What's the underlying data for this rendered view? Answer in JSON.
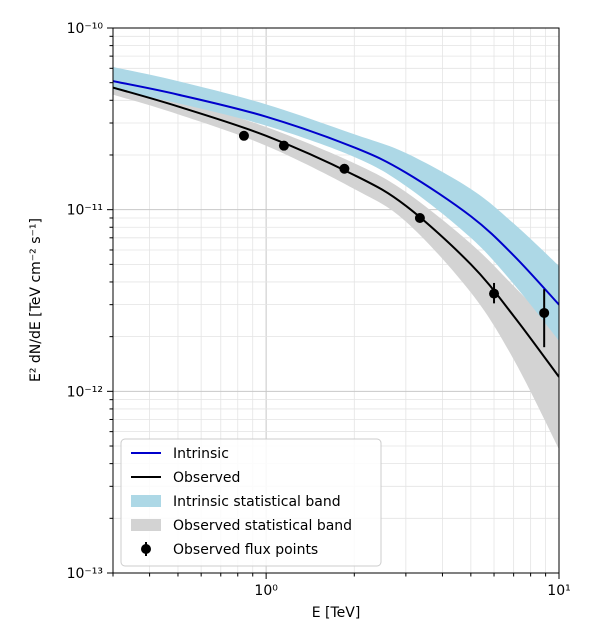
{
  "chart_data": {
    "type": "line",
    "xlabel": "E [TeV]",
    "ylabel": "E² dN/dE [TeV cm⁻² s⁻¹]",
    "xlim": [
      0.3,
      10
    ],
    "ylim": [
      1e-13,
      1e-10
    ],
    "xscale": "log",
    "yscale": "log",
    "grid": true,
    "legend_position": "lower-left",
    "x_tick_labels": [
      "10⁰",
      "10¹"
    ],
    "y_tick_labels": [
      "10⁻¹³",
      "10⁻¹²",
      "10⁻¹¹",
      "10⁻¹⁰"
    ],
    "colors": {
      "intrinsic": "#0000cc",
      "observed": "#000000",
      "intrinsic_band": "#add8e6",
      "observed_band": "#d3d3d3",
      "points": "#000000"
    },
    "series": [
      {
        "name": "Intrinsic",
        "x": [
          0.3,
          0.5,
          1.0,
          2.0,
          3.0,
          5.0,
          7.0,
          10.0
        ],
        "y": [
          5.1e-11,
          4.3e-11,
          3.25e-11,
          2.2e-11,
          1.6e-11,
          9.2e-12,
          5.6e-12,
          3e-12
        ]
      },
      {
        "name": "Observed",
        "x": [
          0.3,
          0.5,
          1.0,
          2.0,
          3.0,
          5.0,
          7.0,
          10.0
        ],
        "y": [
          4.7e-11,
          3.7e-11,
          2.55e-11,
          1.55e-11,
          1.05e-11,
          5e-12,
          2.6e-12,
          1.2e-12
        ]
      }
    ],
    "bands": [
      {
        "name": "Intrinsic statistical band",
        "x": [
          0.3,
          0.5,
          1.0,
          2.0,
          3.0,
          5.0,
          7.0,
          10.0
        ],
        "lower": [
          4.6e-11,
          3.85e-11,
          2.9e-11,
          1.95e-11,
          1.35e-11,
          7e-12,
          3.9e-12,
          1.9e-12
        ],
        "upper": [
          6.1e-11,
          5.1e-11,
          3.8e-11,
          2.6e-11,
          2.05e-11,
          1.3e-11,
          8.4e-12,
          4.9e-12
        ]
      },
      {
        "name": "Observed statistical band",
        "x": [
          0.3,
          0.5,
          1.0,
          2.0,
          3.0,
          5.0,
          7.0,
          10.0
        ],
        "lower": [
          4.3e-11,
          3.35e-11,
          2.25e-11,
          1.3e-11,
          8.6e-12,
          3.5e-12,
          1.5e-12,
          4.8e-13
        ],
        "upper": [
          5.1e-11,
          4.05e-11,
          2.85e-11,
          1.8e-11,
          1.25e-11,
          6.5e-12,
          3.8e-12,
          2.1e-12
        ]
      }
    ],
    "points": {
      "name": "Observed flux points",
      "x": [
        0.84,
        1.15,
        1.85,
        3.35,
        6.0,
        8.9
      ],
      "y": [
        2.55e-11,
        2.25e-11,
        1.68e-11,
        9e-12,
        3.45e-12,
        2.7e-12
      ],
      "y_err_low": [
        2.45e-11,
        2.18e-11,
        1.62e-11,
        8.7e-12,
        3.05e-12,
        1.75e-12
      ],
      "y_err_high": [
        2.65e-11,
        2.33e-11,
        1.75e-11,
        9.35e-12,
        3.95e-12,
        3.65e-12
      ]
    },
    "legend": [
      {
        "label": "Intrinsic",
        "kind": "line",
        "key": "intrinsic"
      },
      {
        "label": "Observed",
        "kind": "line",
        "key": "observed"
      },
      {
        "label": "Intrinsic statistical band",
        "kind": "patch",
        "key": "intrinsic_band"
      },
      {
        "label": "Observed statistical band",
        "kind": "patch",
        "key": "observed_band"
      },
      {
        "label": "Observed flux points",
        "kind": "marker",
        "key": "points"
      }
    ]
  }
}
